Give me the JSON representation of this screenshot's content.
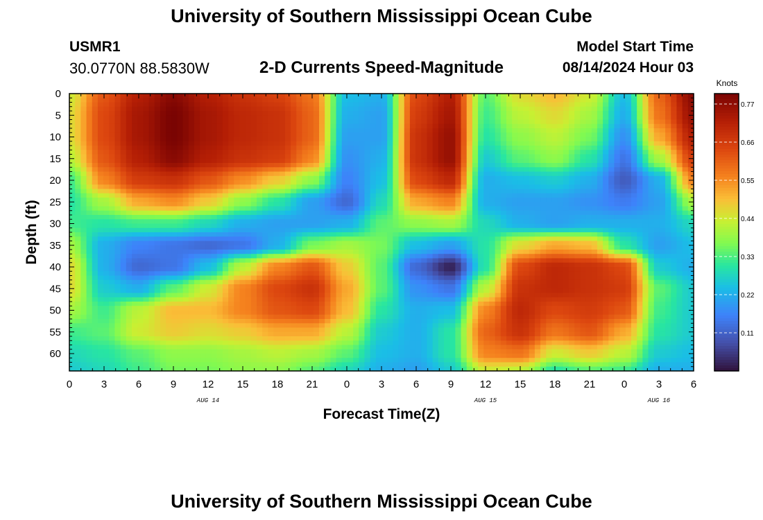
{
  "page": {
    "title": "University of Southern Mississippi Ocean Cube",
    "footer_title": "University of Southern Mississippi Ocean Cube"
  },
  "header": {
    "station_id": "USMR1",
    "station_coords": "30.0770N  88.5830W",
    "subtitle": "2-D Currents Speed-Magnitude",
    "model_label": "Model Start Time",
    "model_datetime": "08/14/2024 Hour 03"
  },
  "chart_data": {
    "type": "heatmap",
    "title": "2-D Currents Speed-Magnitude",
    "xlabel": "Forecast Time(Z)",
    "ylabel": "Depth (ft)",
    "x_ticks": [
      "0",
      "3",
      "6",
      "9",
      "12",
      "15",
      "18",
      "21",
      "0",
      "3",
      "6",
      "9",
      "12",
      "15",
      "18",
      "21",
      "0",
      "3",
      "6"
    ],
    "x_range_hours": [
      0,
      54
    ],
    "y_ticks": [
      0,
      5,
      10,
      15,
      20,
      25,
      30,
      35,
      40,
      45,
      50,
      55,
      60
    ],
    "y_range": [
      0,
      64
    ],
    "y_inverted": true,
    "date_labels": [
      {
        "text": "AUG 14",
        "at_hour": 12
      },
      {
        "text": "AUG 15",
        "at_hour": 36
      },
      {
        "text": "AUG 16",
        "at_hour": 51
      }
    ],
    "colorbar": {
      "label": "Knots",
      "ticks": [
        0.77,
        0.66,
        0.55,
        0.44,
        0.33,
        0.22,
        0.11
      ],
      "range": [
        0.0,
        0.8
      ],
      "colormap": "turbo"
    },
    "grid": {
      "hours": [
        0,
        3,
        6,
        9,
        12,
        15,
        18,
        21,
        24,
        27,
        30,
        33,
        36,
        39,
        42,
        45,
        48,
        51,
        54
      ],
      "depths": [
        0,
        5,
        10,
        15,
        20,
        25,
        30,
        35,
        40,
        45,
        50,
        55,
        60,
        64
      ],
      "speed": [
        [
          0.44,
          0.62,
          0.72,
          0.78,
          0.72,
          0.68,
          0.65,
          0.58,
          0.24,
          0.22,
          0.64,
          0.72,
          0.34,
          0.46,
          0.5,
          0.44,
          0.24,
          0.6,
          0.78
        ],
        [
          0.46,
          0.64,
          0.74,
          0.8,
          0.74,
          0.7,
          0.68,
          0.6,
          0.22,
          0.2,
          0.66,
          0.74,
          0.32,
          0.42,
          0.46,
          0.4,
          0.22,
          0.58,
          0.76
        ],
        [
          0.46,
          0.64,
          0.74,
          0.8,
          0.74,
          0.7,
          0.68,
          0.6,
          0.2,
          0.2,
          0.68,
          0.76,
          0.3,
          0.38,
          0.42,
          0.36,
          0.18,
          0.52,
          0.72
        ],
        [
          0.42,
          0.62,
          0.72,
          0.78,
          0.72,
          0.68,
          0.66,
          0.56,
          0.18,
          0.22,
          0.68,
          0.76,
          0.26,
          0.34,
          0.38,
          0.3,
          0.14,
          0.4,
          0.66
        ],
        [
          0.32,
          0.56,
          0.66,
          0.68,
          0.62,
          0.55,
          0.48,
          0.38,
          0.16,
          0.24,
          0.64,
          0.7,
          0.22,
          0.24,
          0.26,
          0.22,
          0.1,
          0.22,
          0.56
        ],
        [
          0.3,
          0.4,
          0.52,
          0.55,
          0.48,
          0.38,
          0.3,
          0.2,
          0.12,
          0.28,
          0.52,
          0.56,
          0.22,
          0.2,
          0.2,
          0.18,
          0.15,
          0.2,
          0.4
        ],
        [
          0.32,
          0.3,
          0.32,
          0.32,
          0.28,
          0.22,
          0.2,
          0.2,
          0.22,
          0.34,
          0.38,
          0.4,
          0.28,
          0.22,
          0.2,
          0.22,
          0.22,
          0.22,
          0.28
        ],
        [
          0.4,
          0.22,
          0.16,
          0.14,
          0.12,
          0.14,
          0.22,
          0.36,
          0.4,
          0.36,
          0.24,
          0.2,
          0.3,
          0.46,
          0.52,
          0.5,
          0.3,
          0.2,
          0.24
        ],
        [
          0.46,
          0.22,
          0.12,
          0.14,
          0.24,
          0.42,
          0.56,
          0.62,
          0.48,
          0.34,
          0.12,
          0.02,
          0.3,
          0.64,
          0.7,
          0.68,
          0.64,
          0.26,
          0.22
        ],
        [
          0.46,
          0.26,
          0.22,
          0.34,
          0.44,
          0.56,
          0.64,
          0.68,
          0.52,
          0.34,
          0.18,
          0.14,
          0.42,
          0.68,
          0.7,
          0.68,
          0.66,
          0.34,
          0.26
        ],
        [
          0.4,
          0.32,
          0.42,
          0.5,
          0.5,
          0.56,
          0.62,
          0.64,
          0.5,
          0.3,
          0.22,
          0.24,
          0.56,
          0.7,
          0.64,
          0.66,
          0.62,
          0.32,
          0.26
        ],
        [
          0.32,
          0.34,
          0.44,
          0.48,
          0.46,
          0.48,
          0.52,
          0.52,
          0.42,
          0.26,
          0.22,
          0.3,
          0.6,
          0.68,
          0.58,
          0.62,
          0.52,
          0.3,
          0.26
        ],
        [
          0.28,
          0.3,
          0.34,
          0.38,
          0.38,
          0.4,
          0.42,
          0.4,
          0.34,
          0.24,
          0.22,
          0.3,
          0.56,
          0.58,
          0.44,
          0.48,
          0.42,
          0.26,
          0.24
        ],
        [
          0.26,
          0.28,
          0.32,
          0.36,
          0.36,
          0.38,
          0.38,
          0.34,
          0.28,
          0.22,
          0.2,
          0.26,
          0.44,
          0.42,
          0.3,
          0.34,
          0.32,
          0.22,
          0.22
        ]
      ]
    }
  }
}
